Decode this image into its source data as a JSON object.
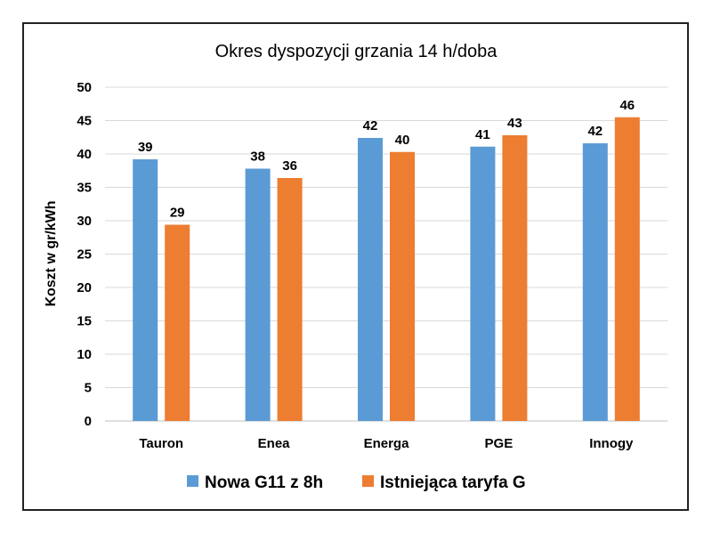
{
  "chart_data": {
    "type": "bar",
    "title": "Okres dyspozycji grzania 14 h/doba",
    "xlabel": "",
    "ylabel": "Koszt w gr/kWh",
    "ylim": [
      0,
      50
    ],
    "yticks": [
      "0",
      "5",
      "10",
      "15",
      "20",
      "25",
      "30",
      "35",
      "40",
      "45",
      "50"
    ],
    "grid": true,
    "legend_position": "bottom",
    "categories": [
      "Tauron",
      "Enea",
      "Energa",
      "PGE",
      "Innogy"
    ],
    "series": [
      {
        "name": "Nowa G11 z 8h",
        "color": "#5B9BD5",
        "values": [
          39.2,
          37.8,
          42.4,
          41.1,
          41.6
        ],
        "labels": [
          "39",
          "38",
          "42",
          "41",
          "42"
        ]
      },
      {
        "name": "Istniejąca taryfa G",
        "color": "#ED7D31",
        "values": [
          29.4,
          36.4,
          40.3,
          42.8,
          45.5
        ],
        "labels": [
          "29",
          "36",
          "40",
          "43",
          "46"
        ]
      }
    ]
  }
}
